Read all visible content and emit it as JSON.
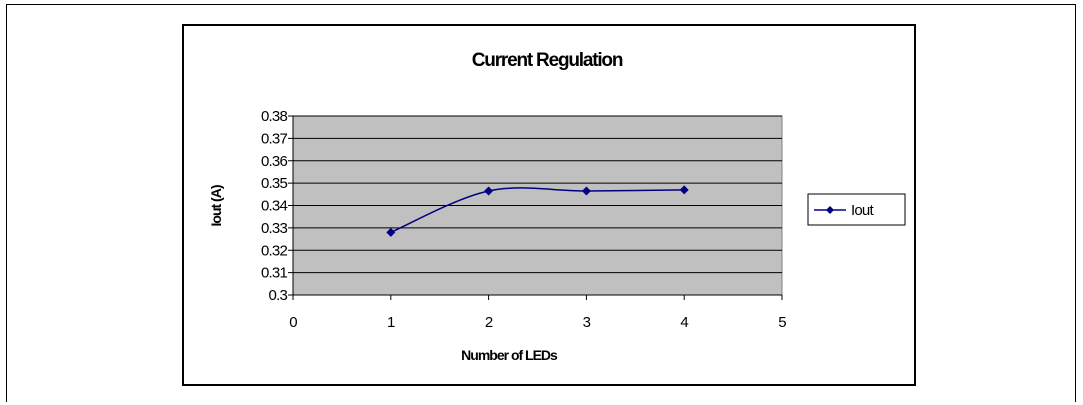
{
  "chart_data": {
    "type": "line",
    "title": "Current Regulation",
    "xlabel": "Number of LEDs",
    "ylabel": "Iout (A)",
    "xlim": [
      0,
      5
    ],
    "ylim": [
      0.3,
      0.38
    ],
    "x_ticks": [
      "0",
      "1",
      "2",
      "3",
      "4",
      "5"
    ],
    "y_ticks": [
      "0.3",
      "0.31",
      "0.32",
      "0.33",
      "0.34",
      "0.35",
      "0.36",
      "0.37",
      "0.38"
    ],
    "grid": true,
    "plot_background": "#c0c0c0",
    "legend_position": "right",
    "series": [
      {
        "name": "Iout",
        "color": "#000080",
        "marker": "diamond",
        "smooth": true,
        "x": [
          1,
          2,
          3,
          4
        ],
        "y": [
          0.328,
          0.3465,
          0.3465,
          0.347
        ]
      }
    ]
  }
}
